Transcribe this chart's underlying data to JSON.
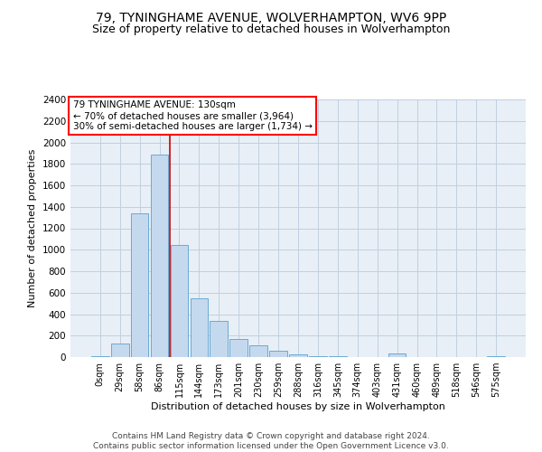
{
  "title": "79, TYNINGHAME AVENUE, WOLVERHAMPTON, WV6 9PP",
  "subtitle": "Size of property relative to detached houses in Wolverhampton",
  "xlabel": "Distribution of detached houses by size in Wolverhampton",
  "ylabel": "Number of detached properties",
  "footer_line1": "Contains HM Land Registry data © Crown copyright and database right 2024.",
  "footer_line2": "Contains public sector information licensed under the Open Government Licence v3.0.",
  "bar_labels": [
    "0sqm",
    "29sqm",
    "58sqm",
    "86sqm",
    "115sqm",
    "144sqm",
    "173sqm",
    "201sqm",
    "230sqm",
    "259sqm",
    "288sqm",
    "316sqm",
    "345sqm",
    "374sqm",
    "403sqm",
    "431sqm",
    "460sqm",
    "489sqm",
    "518sqm",
    "546sqm",
    "575sqm"
  ],
  "bar_values": [
    10,
    130,
    1340,
    1890,
    1045,
    545,
    340,
    170,
    110,
    58,
    28,
    12,
    10,
    0,
    0,
    30,
    0,
    0,
    0,
    0,
    5
  ],
  "bar_color": "#c5d9ee",
  "bar_edgecolor": "#6aaad4",
  "annotation_title": "79 TYNINGHAME AVENUE: 130sqm",
  "annotation_line2": "← 70% of detached houses are smaller (3,964)",
  "annotation_line3": "30% of semi-detached houses are larger (1,734) →",
  "vline_x": 3.5,
  "vline_color": "#cc0000",
  "ylim_max": 2400,
  "bg_color": "#e8eff6",
  "grid_color": "#c0d0e0",
  "title_fontsize": 10,
  "subtitle_fontsize": 9
}
